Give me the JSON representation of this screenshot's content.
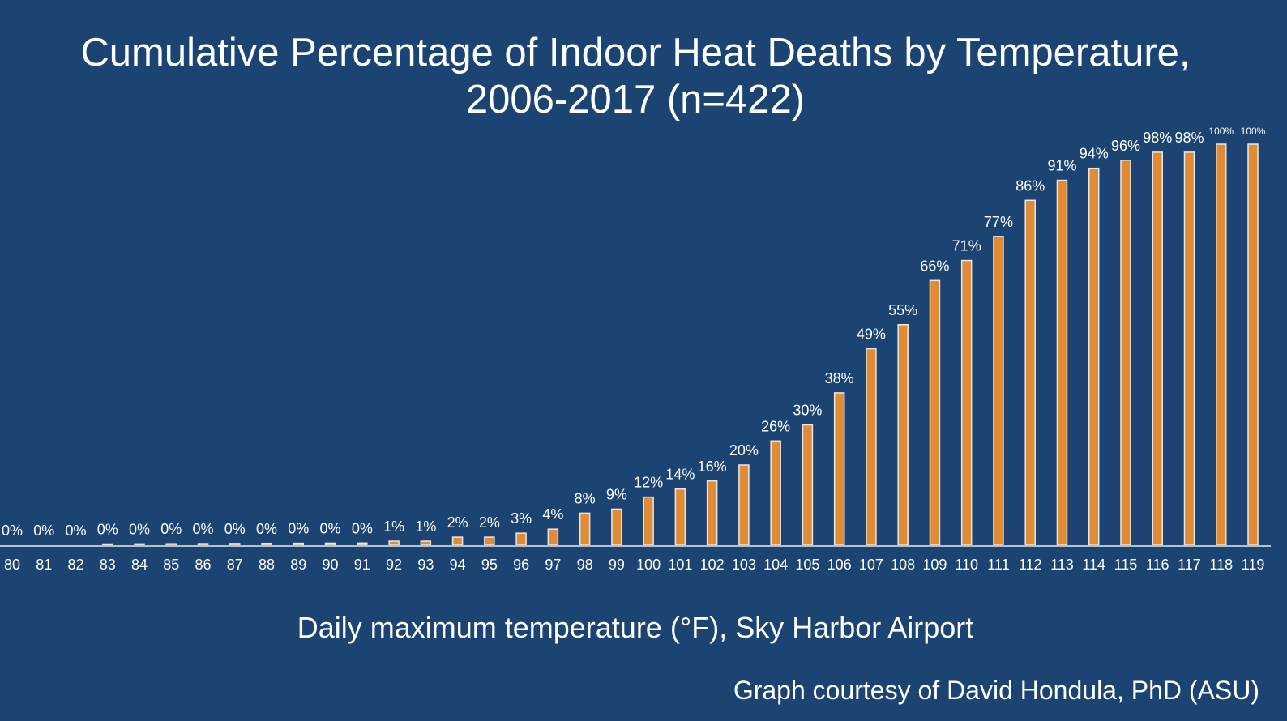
{
  "chart_data": {
    "type": "bar",
    "title_line1": "Cumulative Percentage of Indoor Heat Deaths by Temperature,",
    "title_line2": "2006-2017 (n=422)",
    "xlabel": "Daily maximum temperature (°F), Sky Harbor Airport",
    "ylabel": "",
    "credit": "Graph courtesy of David Hondula, PhD (ASU)",
    "ylim": [
      0,
      100
    ],
    "grid": false,
    "categories": [
      "80",
      "81",
      "82",
      "83",
      "84",
      "85",
      "86",
      "87",
      "88",
      "89",
      "90",
      "91",
      "92",
      "93",
      "94",
      "95",
      "96",
      "97",
      "98",
      "99",
      "100",
      "101",
      "102",
      "103",
      "104",
      "105",
      "106",
      "107",
      "108",
      "109",
      "110",
      "111",
      "112",
      "113",
      "114",
      "115",
      "116",
      "117",
      "118",
      "119"
    ],
    "values": [
      0,
      0,
      0,
      0,
      0,
      0,
      0,
      0,
      0,
      0,
      0,
      0,
      1,
      1,
      2,
      2,
      3,
      4,
      8,
      9,
      12,
      14,
      16,
      20,
      26,
      30,
      38,
      49,
      55,
      66,
      71,
      77,
      86,
      91,
      94,
      96,
      98,
      98,
      100,
      100
    ],
    "labels": [
      "0%",
      "0%",
      "0%",
      "0%",
      "0%",
      "0%",
      "0%",
      "0%",
      "0%",
      "0%",
      "0%",
      "0%",
      "1%",
      "1%",
      "2%",
      "2%",
      "3%",
      "4%",
      "8%",
      "9%",
      "12%",
      "14%",
      "16%",
      "20%",
      "26%",
      "30%",
      "38%",
      "49%",
      "55%",
      "66%",
      "71%",
      "77%",
      "86%",
      "91%",
      "94%",
      "96%",
      "98%",
      "98%",
      "100%",
      "100%"
    ],
    "bar_color": "#e08c36",
    "background_color": "#1c4473"
  }
}
